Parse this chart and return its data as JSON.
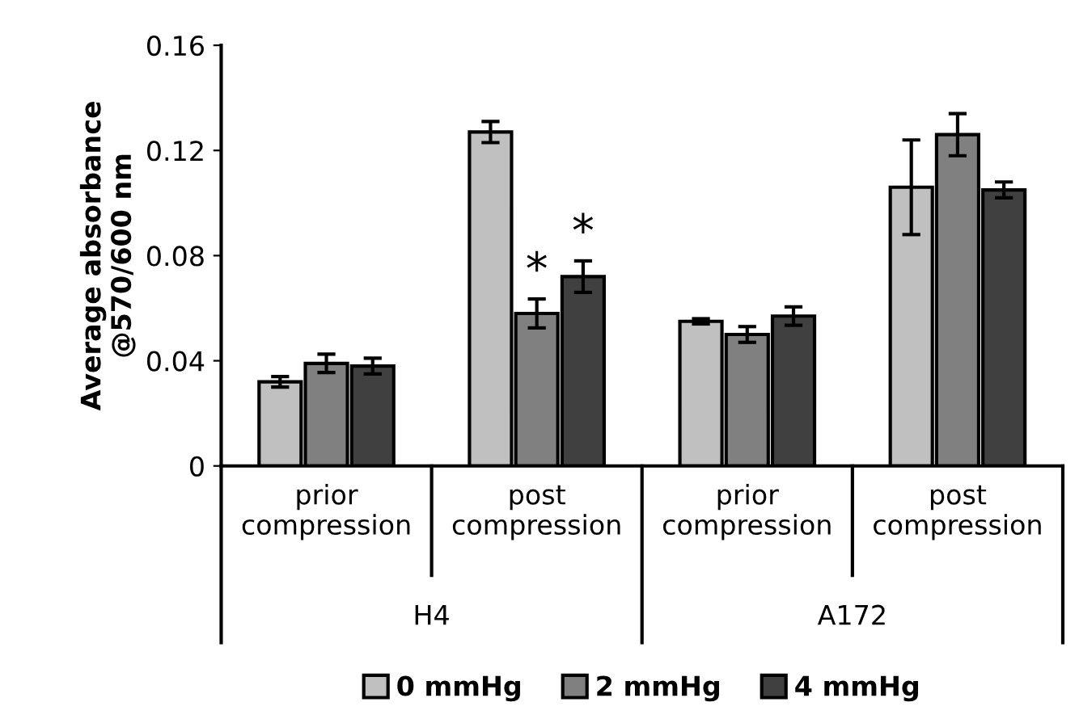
{
  "chart_data": {
    "type": "bar",
    "ylabel": "Average absorbance\n@570/600 nm",
    "categories": [
      "prior\ncompression",
      "post\ncompression",
      "prior\ncompression",
      "post\ncompression"
    ],
    "annotations": [
      "H4",
      "A172"
    ],
    "series": [
      {
        "name": "0 mmHg",
        "color": "#c0c0c0",
        "values": [
          0.032,
          0.127,
          0.055,
          0.106
        ],
        "errors": [
          0.002,
          0.004,
          0.001,
          0.018
        ]
      },
      {
        "name": "2 mmHg",
        "color": "#808080",
        "values": [
          0.039,
          0.058,
          0.05,
          0.126
        ],
        "errors": [
          0.0035,
          0.0055,
          0.003,
          0.008
        ],
        "value_labels": [
          null,
          "*",
          null,
          null
        ]
      },
      {
        "name": "4 mmHg",
        "color": "#404040",
        "values": [
          0.038,
          0.072,
          0.057,
          0.105
        ],
        "errors": [
          0.003,
          0.006,
          0.0035,
          0.003
        ],
        "value_labels": [
          null,
          "*",
          null,
          null
        ]
      }
    ],
    "ylim": [
      0,
      0.16
    ],
    "yticks": [
      0,
      0.04,
      0.08,
      0.12,
      0.16
    ],
    "legend": "bottom",
    "grid": false
  }
}
